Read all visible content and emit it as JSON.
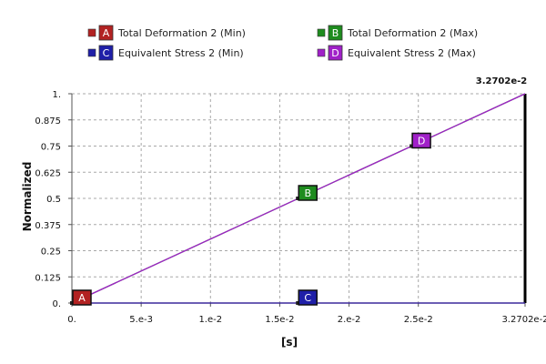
{
  "chart_data": {
    "type": "line",
    "xlabel": "[s]",
    "ylabel": "Normalized",
    "xlim": [
      0,
      0.032702
    ],
    "ylim": [
      0,
      1
    ],
    "x_ticks": [
      0,
      0.005,
      0.01,
      0.015,
      0.02,
      0.025,
      0.032702
    ],
    "x_tick_labels": [
      "0.",
      "5.e-3",
      "1.e-2",
      "1.5e-2",
      "2.e-2",
      "2.5e-2",
      "3.2702e-2"
    ],
    "y_ticks": [
      0,
      0.125,
      0.25,
      0.375,
      0.5,
      0.625,
      0.75,
      0.875,
      1
    ],
    "y_tick_labels": [
      "0.",
      "0.125",
      "0.25",
      "0.375",
      "0.5",
      "0.625",
      "0.75",
      "0.875",
      "1."
    ],
    "grid": true,
    "legend_position": "top",
    "end_value_label": "3.2702e-2",
    "series": [
      {
        "name": "Total Deformation 2 (Min)",
        "letter": "A",
        "color": "#b22222",
        "x": [
          0,
          0.032702
        ],
        "y": [
          0,
          0
        ],
        "marker": {
          "x": 0,
          "y": 0
        }
      },
      {
        "name": "Total Deformation 2 (Max)",
        "letter": "B",
        "color": "#1e8c1e",
        "x": [
          0,
          0.032702
        ],
        "y": [
          0,
          1
        ],
        "marker": {
          "x": 0.0163,
          "y": 0.5
        }
      },
      {
        "name": "Equivalent Stress 2 (Min)",
        "letter": "C",
        "color": "#1f1fa8",
        "x": [
          0,
          0.032702
        ],
        "y": [
          0,
          0
        ],
        "marker": {
          "x": 0.0163,
          "y": 0
        }
      },
      {
        "name": "Equivalent Stress 2 (Max)",
        "letter": "D",
        "color": "#a020c8",
        "x": [
          0,
          0.032702
        ],
        "y": [
          0,
          1
        ],
        "marker": {
          "x": 0.0245,
          "y": 0.75
        }
      }
    ]
  }
}
